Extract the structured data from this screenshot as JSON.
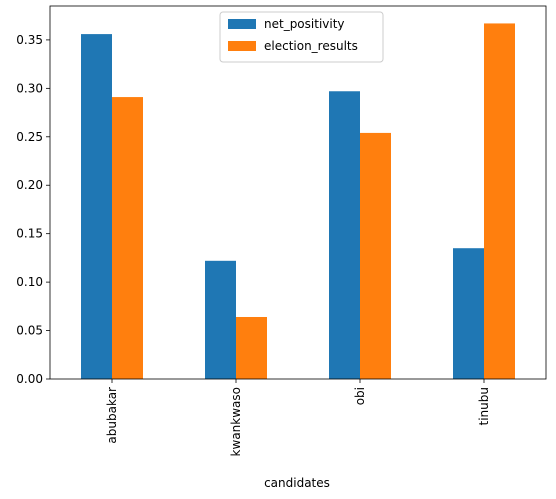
{
  "chart_data": {
    "type": "bar",
    "categories": [
      "abubakar",
      "kwankwaso",
      "obi",
      "tinubu"
    ],
    "series": [
      {
        "name": "net_positivity",
        "values": [
          0.356,
          0.122,
          0.297,
          0.135
        ],
        "color": "#1f77b4"
      },
      {
        "name": "election_results",
        "values": [
          0.291,
          0.064,
          0.254,
          0.367
        ],
        "color": "#ff7f0e"
      }
    ],
    "xlabel": "candidates",
    "ylabel": "",
    "ylim": [
      0,
      0.385
    ],
    "yticks": [
      "0.00",
      "0.05",
      "0.10",
      "0.15",
      "0.20",
      "0.25",
      "0.30",
      "0.35"
    ],
    "legend_position": "top-center",
    "grid": false
  }
}
